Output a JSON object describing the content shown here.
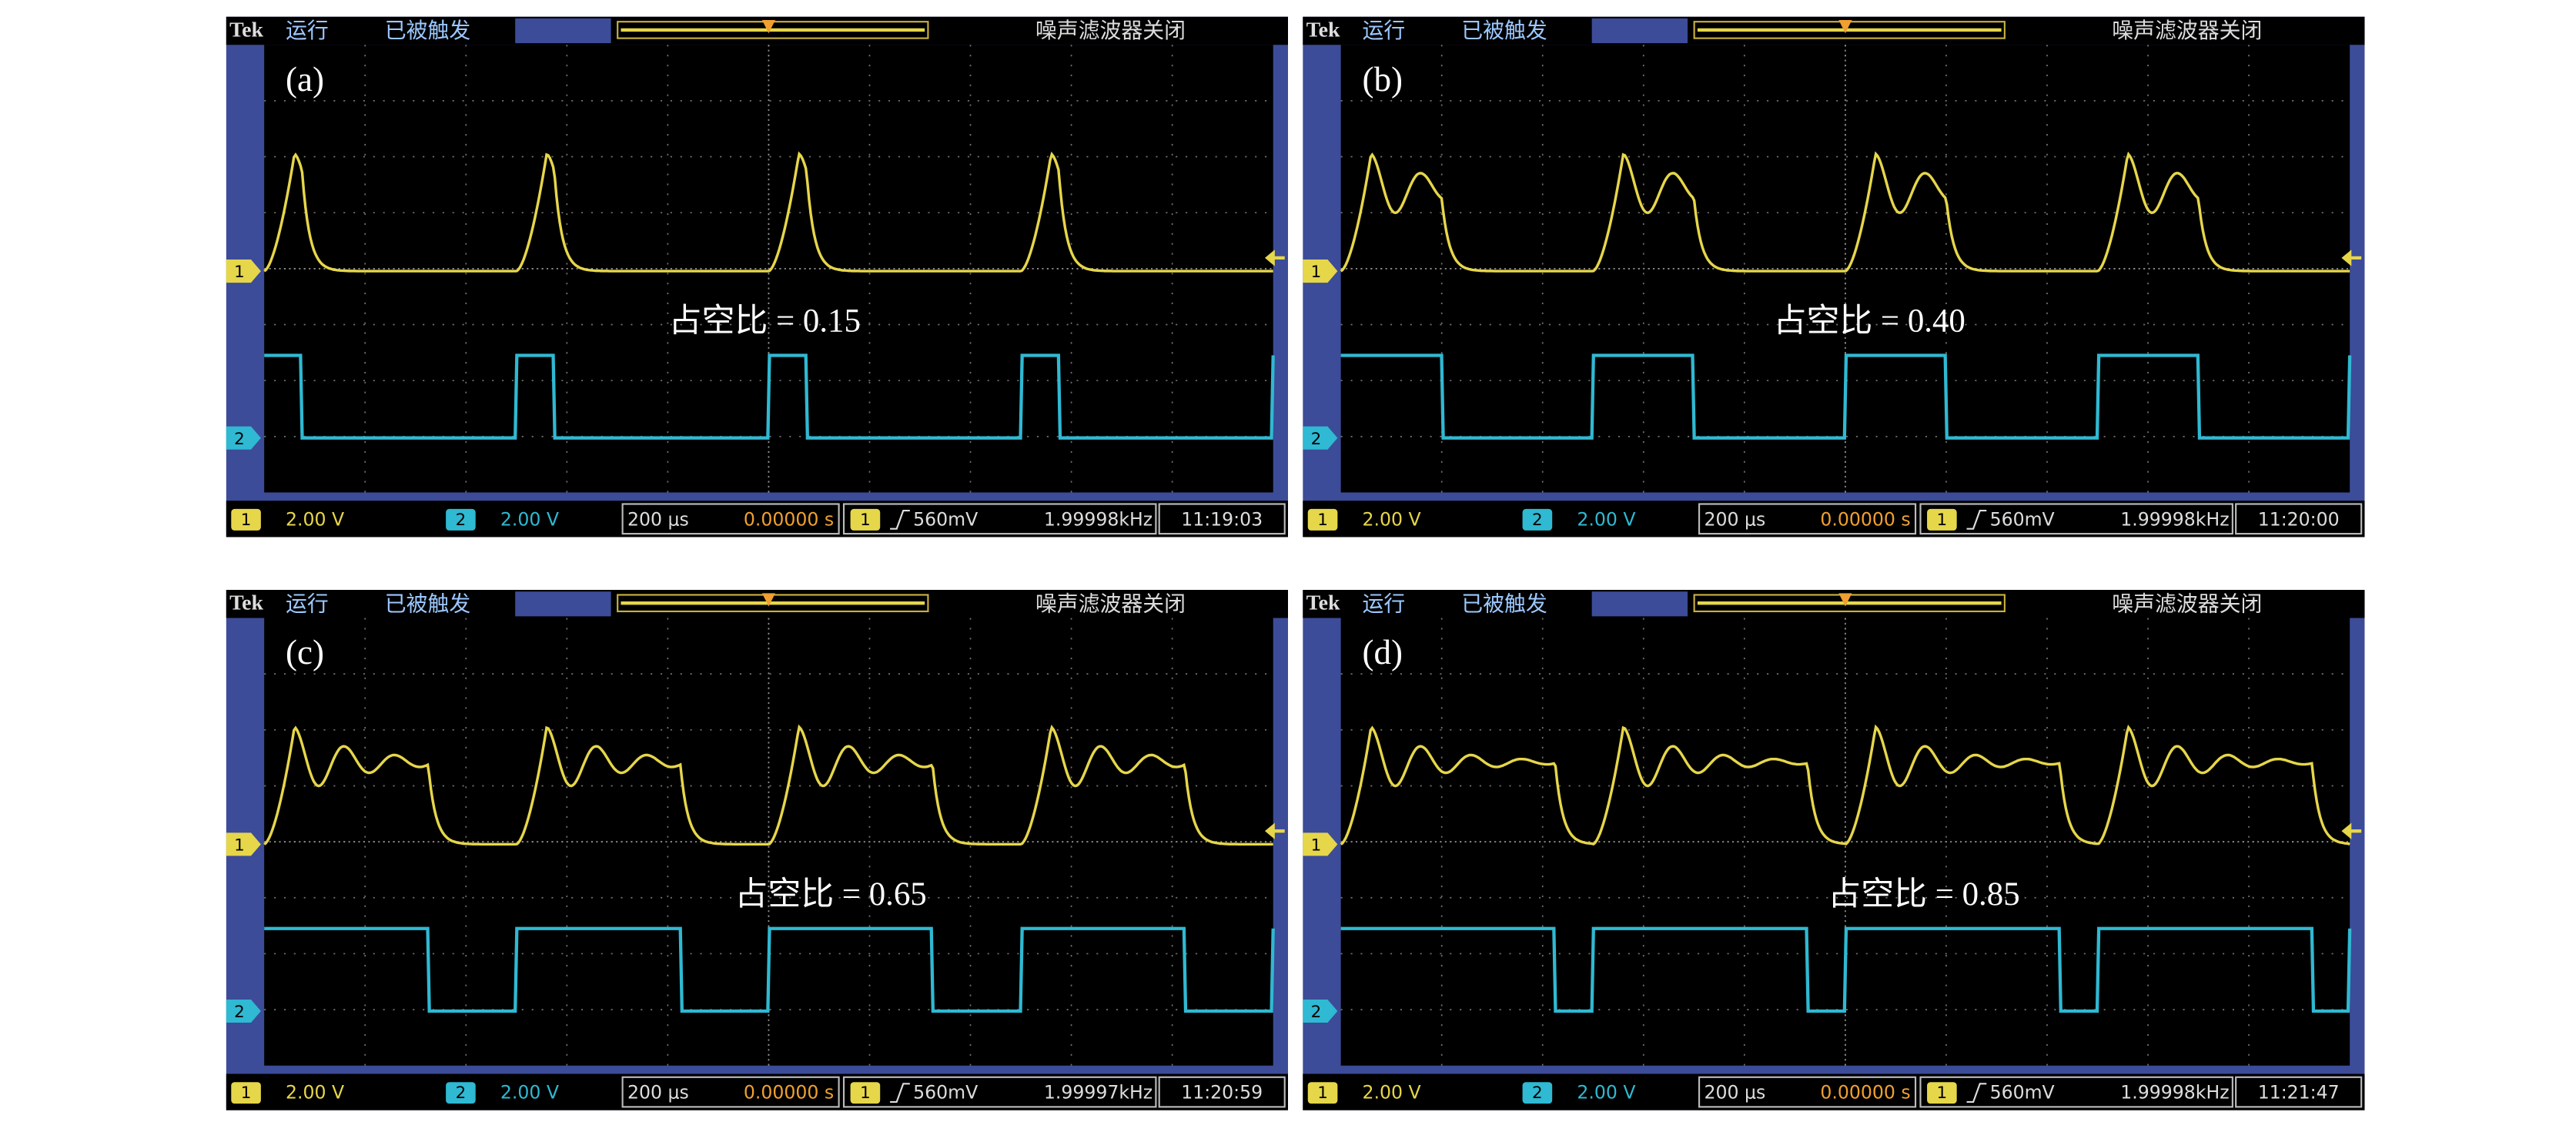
{
  "common": {
    "brand": "Tek",
    "state": "运行",
    "trigger_status": "已被触发",
    "filter": "噪声滤波器关闭",
    "ch1": "1",
    "ch2": "2"
  },
  "panels": [
    {
      "label": "(a)",
      "annotation": "占空比 = 0.15",
      "ch1_scale": "2.00 V",
      "ch2_scale": "2.00 V",
      "timebase": "200 μs",
      "position": "0.00000 s",
      "trigger_level": "560mV",
      "frequency": "1.99998kHz",
      "time": "11:19:03"
    },
    {
      "label": "(b)",
      "annotation": "占空比 = 0.40",
      "ch1_scale": "2.00 V",
      "ch2_scale": "2.00 V",
      "timebase": "200 μs",
      "position": "0.00000 s",
      "trigger_level": "560mV",
      "frequency": "1.99998kHz",
      "time": "11:20:00"
    },
    {
      "label": "(c)",
      "annotation": "占空比 = 0.65",
      "ch1_scale": "2.00 V",
      "ch2_scale": "2.00 V",
      "timebase": "200 μs",
      "position": "0.00000 s",
      "trigger_level": "560mV",
      "frequency": "1.99997kHz",
      "time": "11:20:59"
    },
    {
      "label": "(d)",
      "annotation": "占空比 = 0.85",
      "ch1_scale": "2.00 V",
      "ch2_scale": "2.00 V",
      "timebase": "200 μs",
      "position": "0.00000 s",
      "trigger_level": "560mV",
      "frequency": "1.99998kHz",
      "time": "11:21:47"
    }
  ]
}
